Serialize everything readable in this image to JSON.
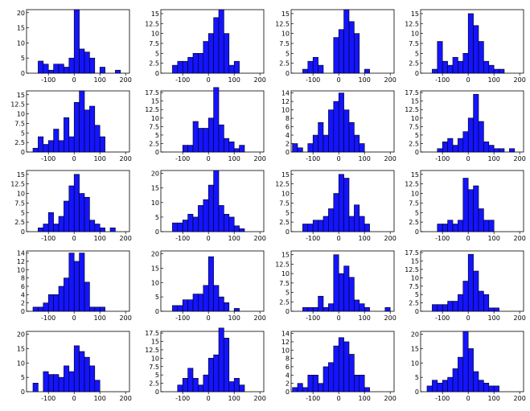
{
  "chart_data": {
    "type": "bar",
    "layout": "grid 5 rows x 4 columns of histograms",
    "bar_color": "#1414ff",
    "bar_edge_color": "#000000",
    "bin_width": 20,
    "bin_starts": [
      -180,
      -160,
      -140,
      -120,
      -100,
      -80,
      -60,
      -40,
      -20,
      0,
      20,
      40,
      60,
      80,
      100,
      120,
      140,
      160,
      180
    ],
    "x_ticks": [
      -100,
      0,
      100,
      200
    ],
    "xlim": [
      -185,
      215
    ],
    "panels": [
      {
        "yticks": [
          "0",
          "5",
          "10",
          "15",
          "20"
        ],
        "ylim": [
          0,
          21
        ],
        "values": [
          0,
          0,
          4,
          3,
          1,
          3,
          3,
          2,
          5,
          21,
          8,
          7,
          5,
          0,
          2,
          0,
          0,
          1,
          0
        ]
      },
      {
        "yticks": [
          "0",
          "2.5",
          "5",
          "7.5",
          "10",
          "12.5",
          "15"
        ],
        "ylim": [
          0,
          16
        ],
        "values": [
          0,
          0,
          2,
          3,
          3,
          4,
          5,
          5,
          8,
          10,
          14,
          16,
          10,
          2,
          3,
          0,
          0,
          0,
          0
        ]
      },
      {
        "yticks": [
          "0",
          "2.5",
          "5",
          "7.5",
          "10",
          "12.5",
          "15"
        ],
        "ylim": [
          0,
          16
        ],
        "values": [
          0,
          0,
          1,
          3,
          4,
          2,
          0,
          0,
          9,
          11,
          16,
          13,
          10,
          0,
          1,
          0,
          0,
          0,
          0
        ]
      },
      {
        "yticks": [
          "0",
          "2.5",
          "5",
          "7.5",
          "10",
          "12.5",
          "15"
        ],
        "ylim": [
          0,
          16
        ],
        "values": [
          0,
          0,
          1,
          8,
          3,
          2,
          4,
          3,
          5,
          15,
          12,
          8,
          3,
          2,
          1,
          1,
          0,
          0,
          0
        ]
      },
      {
        "yticks": [
          "0",
          "2.5",
          "5",
          "7.5",
          "10",
          "12.5",
          "15"
        ],
        "ylim": [
          0,
          16
        ],
        "values": [
          0,
          1,
          4,
          2,
          3,
          6,
          3,
          9,
          4,
          13,
          16,
          11,
          12,
          7,
          4,
          0,
          0,
          0,
          0
        ]
      },
      {
        "yticks": [
          "0",
          "2.5",
          "5",
          "7.5",
          "10",
          "12.5",
          "15",
          "17.5"
        ],
        "ylim": [
          0,
          18
        ],
        "values": [
          0,
          0,
          0,
          0,
          2,
          2,
          9,
          7,
          7,
          10,
          19,
          8,
          4,
          3,
          1,
          2,
          0,
          0,
          0
        ]
      },
      {
        "yticks": [
          "0",
          "2",
          "4",
          "6",
          "8",
          "10",
          "12",
          "14"
        ],
        "ylim": [
          0,
          14.5
        ],
        "values": [
          2,
          1,
          0,
          2,
          4,
          7,
          4,
          10,
          12,
          14,
          10,
          7,
          4,
          2,
          0,
          0,
          0,
          0,
          0
        ]
      },
      {
        "yticks": [
          "0",
          "2.5",
          "5",
          "7.5",
          "10",
          "12.5",
          "15",
          "17.5"
        ],
        "ylim": [
          0,
          18
        ],
        "values": [
          0,
          0,
          0,
          1,
          3,
          4,
          2,
          4,
          6,
          10,
          17,
          9,
          3,
          2,
          1,
          1,
          0,
          1,
          0
        ]
      },
      {
        "yticks": [
          "0",
          "2.5",
          "5",
          "7.5",
          "10",
          "12.5",
          "15"
        ],
        "ylim": [
          0,
          16
        ],
        "values": [
          0,
          0,
          1,
          2,
          5,
          2,
          4,
          8,
          12,
          15,
          10,
          9,
          3,
          2,
          1,
          0,
          1,
          0,
          0
        ]
      },
      {
        "yticks": [
          "0",
          "5",
          "10",
          "15",
          "20"
        ],
        "ylim": [
          0,
          21
        ],
        "values": [
          0,
          0,
          3,
          3,
          4,
          6,
          5,
          9,
          11,
          16,
          21,
          9,
          6,
          5,
          2,
          1,
          0,
          0,
          0
        ]
      },
      {
        "yticks": [
          "0",
          "2.5",
          "5",
          "7.5",
          "10",
          "12.5",
          "15"
        ],
        "ylim": [
          0,
          16
        ],
        "values": [
          0,
          0,
          2,
          2,
          3,
          3,
          4,
          6,
          10,
          15,
          14,
          4,
          7,
          4,
          2,
          0,
          0,
          0,
          0
        ]
      },
      {
        "yticks": [
          "0",
          "2.5",
          "5",
          "7.5",
          "10",
          "12.5",
          "15"
        ],
        "ylim": [
          0,
          16
        ],
        "values": [
          0,
          0,
          0,
          2,
          2,
          3,
          2,
          3,
          14,
          11,
          12,
          6,
          3,
          3,
          0,
          0,
          0,
          0,
          0
        ]
      },
      {
        "yticks": [
          "0",
          "2",
          "4",
          "6",
          "8",
          "10",
          "12",
          "14"
        ],
        "ylim": [
          0,
          14.5
        ],
        "values": [
          0,
          1,
          1,
          2,
          4,
          4,
          6,
          8,
          14,
          12,
          14,
          7,
          1,
          1,
          1,
          0,
          0,
          0,
          0
        ]
      },
      {
        "yticks": [
          "0",
          "5",
          "10",
          "15",
          "20"
        ],
        "ylim": [
          0,
          21
        ],
        "values": [
          0,
          0,
          2,
          2,
          4,
          4,
          6,
          6,
          9,
          19,
          9,
          5,
          3,
          0,
          1,
          0,
          0,
          0,
          0
        ]
      },
      {
        "yticks": [
          "0",
          "2.5",
          "5",
          "7.5",
          "10",
          "12.5",
          "15"
        ],
        "ylim": [
          0,
          16
        ],
        "values": [
          0,
          0,
          1,
          1,
          1,
          4,
          1,
          2,
          15,
          10,
          12,
          9,
          3,
          2,
          1,
          0,
          0,
          0,
          1
        ]
      },
      {
        "yticks": [
          "0",
          "2.5",
          "5",
          "7.5",
          "10",
          "12.5",
          "15",
          "17.5"
        ],
        "ylim": [
          0,
          18
        ],
        "values": [
          0,
          0,
          2,
          2,
          2,
          3,
          3,
          5,
          9,
          17,
          12,
          6,
          5,
          1,
          1,
          0,
          0,
          0,
          0
        ]
      },
      {
        "yticks": [
          "0",
          "5",
          "10",
          "15",
          "20"
        ],
        "ylim": [
          0,
          21
        ],
        "values": [
          0,
          3,
          0,
          7,
          6,
          6,
          5,
          9,
          7,
          16,
          14,
          12,
          9,
          4,
          0,
          0,
          0,
          0,
          0
        ]
      },
      {
        "yticks": [
          "0",
          "2.5",
          "5",
          "7.5",
          "10",
          "12.5",
          "15",
          "17.5"
        ],
        "ylim": [
          0,
          18
        ],
        "values": [
          0,
          0,
          0,
          2,
          4,
          7,
          4,
          2,
          5,
          10,
          11,
          19,
          16,
          3,
          4,
          2,
          0,
          0,
          0
        ]
      },
      {
        "yticks": [
          "0",
          "2",
          "4",
          "6",
          "8",
          "10",
          "12",
          "14"
        ],
        "ylim": [
          0,
          14.5
        ],
        "values": [
          1,
          2,
          1,
          4,
          4,
          2,
          6,
          7,
          11,
          13,
          12,
          9,
          4,
          4,
          1,
          0,
          0,
          0,
          0
        ]
      },
      {
        "yticks": [
          "0",
          "5",
          "10",
          "15",
          "20"
        ],
        "ylim": [
          0,
          21
        ],
        "values": [
          0,
          2,
          4,
          3,
          4,
          5,
          8,
          12,
          21,
          15,
          7,
          4,
          3,
          2,
          2,
          0,
          0,
          0,
          0
        ]
      }
    ]
  }
}
